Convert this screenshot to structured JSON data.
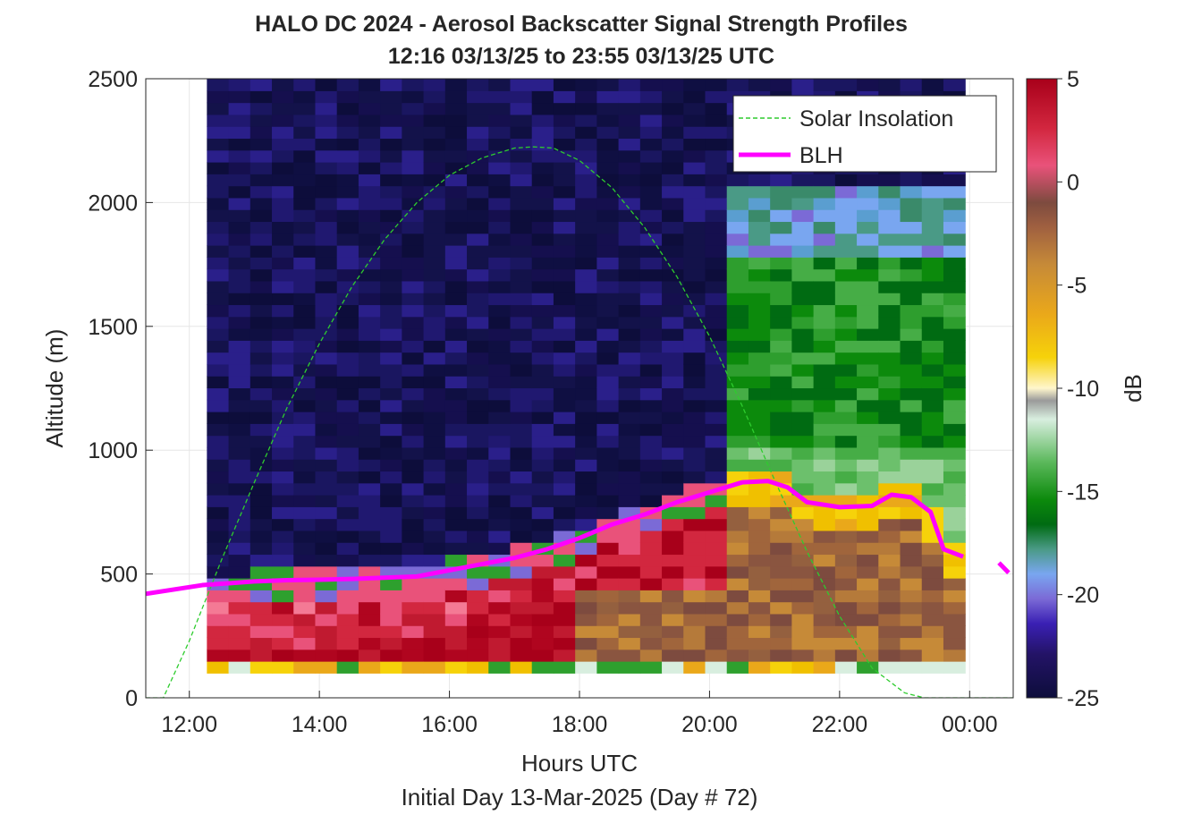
{
  "chart_data": {
    "type": "heatmap",
    "title_line1": "HALO DC 2024 - Aerosol Backscatter Signal Strength Profiles",
    "title_line2": "12:16 03/13/25 to 23:55 03/13/25  UTC",
    "xlabel": "Hours UTC",
    "xlabel2": "Initial Day 13-Mar-2025 (Day # 72)",
    "ylabel": "Altitude (m)",
    "colorbar_label": "dB",
    "xlim": [
      11.33,
      24.67
    ],
    "ylim": [
      0,
      2500
    ],
    "clim": [
      -25,
      5
    ],
    "x_ticks": [
      12,
      14,
      16,
      18,
      20,
      22,
      24
    ],
    "x_tick_labels": [
      "12:00",
      "14:00",
      "16:00",
      "18:00",
      "20:00",
      "22:00",
      "00:00"
    ],
    "y_ticks": [
      0,
      500,
      1000,
      1500,
      2000,
      2500
    ],
    "y_tick_labels": [
      "0",
      "500",
      "1000",
      "1500",
      "2000",
      "2500"
    ],
    "colorbar_ticks": [
      5,
      0,
      -5,
      -10,
      -15,
      -20,
      -25
    ],
    "colorbar_tick_labels": [
      "5",
      "0",
      "-5",
      "-10",
      "-15",
      "-20",
      "-25"
    ],
    "grid": true,
    "legend_position": "top-right",
    "legend": [
      {
        "label": "Solar Insolation",
        "style": "dashed",
        "color": "#2ecc2e"
      },
      {
        "label": "BLH",
        "style": "solid",
        "color": "#ff00ff"
      }
    ],
    "heatmap_time_range": [
      12.27,
      23.93
    ],
    "heatmap_altitude_range": [
      100,
      2500
    ],
    "blh_series": {
      "name": "BLH",
      "x": [
        11.33,
        12.2,
        13.0,
        13.5,
        14.0,
        14.5,
        15.0,
        15.5,
        16.0,
        16.5,
        17.0,
        17.5,
        18.0,
        18.5,
        19.0,
        19.5,
        20.0,
        20.5,
        20.9,
        21.2,
        21.5,
        22.0,
        22.5,
        22.8,
        23.1,
        23.4,
        23.6,
        23.9
      ],
      "y": [
        420,
        455,
        470,
        475,
        477,
        480,
        485,
        490,
        515,
        540,
        565,
        600,
        645,
        700,
        740,
        790,
        830,
        870,
        875,
        850,
        790,
        770,
        775,
        820,
        810,
        750,
        600,
        570
      ]
    },
    "blh_extra_segment": {
      "x": [
        24.45,
        24.6
      ],
      "y": [
        545,
        505
      ]
    },
    "solar_series": {
      "name": "Solar Insolation",
      "x": [
        11.33,
        11.6,
        12.0,
        12.5,
        13.0,
        13.5,
        14.0,
        14.5,
        15.0,
        15.5,
        16.0,
        16.5,
        17.0,
        17.3,
        17.6,
        18.0,
        18.5,
        19.0,
        19.5,
        20.0,
        20.5,
        21.0,
        21.5,
        22.0,
        22.5,
        23.0,
        23.3,
        24.67
      ],
      "y": [
        0,
        0,
        230,
        560,
        870,
        1170,
        1430,
        1660,
        1850,
        2000,
        2110,
        2180,
        2220,
        2225,
        2220,
        2170,
        2060,
        1900,
        1700,
        1460,
        1180,
        880,
        590,
        330,
        120,
        20,
        0,
        0
      ]
    }
  }
}
